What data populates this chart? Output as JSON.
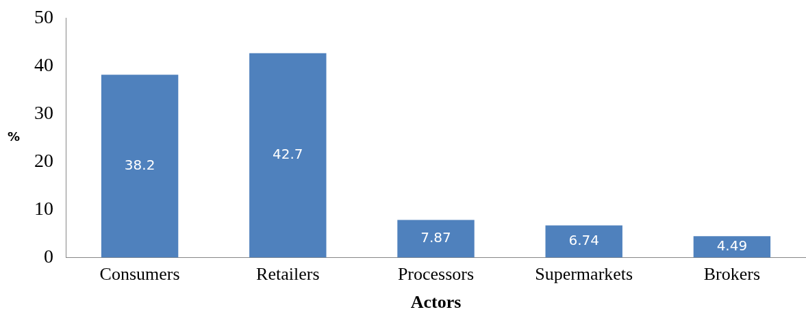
{
  "chart_data": {
    "type": "bar",
    "xlabel": "Actors",
    "ylabel": "%",
    "categories": [
      "Consumers",
      "Retailers",
      "Processors",
      "Supermarkets",
      "Brokers"
    ],
    "values": [
      38.2,
      42.7,
      7.87,
      6.74,
      4.49
    ],
    "color": "#4f81bd",
    "ylim": [
      0,
      50
    ],
    "yticks": [
      0,
      10,
      20,
      30,
      40,
      50
    ],
    "grid": false,
    "legend": false,
    "data_labels": true
  }
}
